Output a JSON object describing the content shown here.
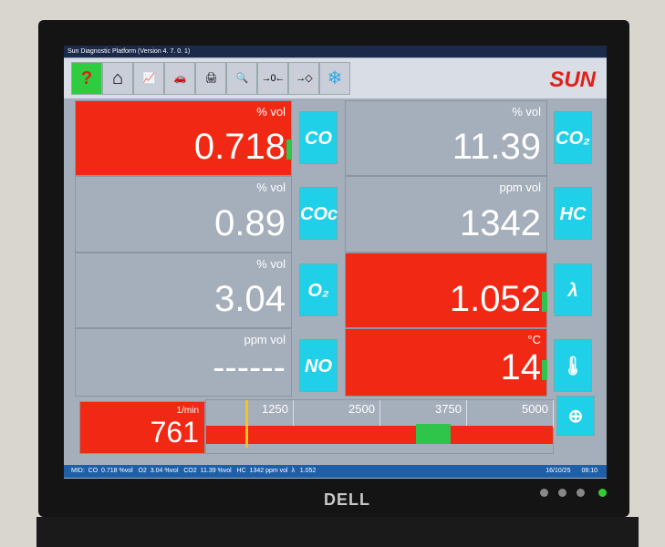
{
  "window": {
    "title": "Sun Diagnostic Platform (Version 4. 7. 0. 1)",
    "logo": "SUN"
  },
  "toolbar": [
    {
      "icon": "help-icon",
      "glyph": "?"
    },
    {
      "icon": "home-icon",
      "glyph": "⌂"
    },
    {
      "icon": "graph-icon",
      "glyph": "📈"
    },
    {
      "icon": "car-icon",
      "glyph": "🚗"
    },
    {
      "icon": "printer-icon",
      "glyph": "🖨"
    },
    {
      "icon": "magnifier-icon",
      "glyph": "🔍"
    },
    {
      "icon": "zero-calibrate-icon",
      "glyph": "→0←"
    },
    {
      "icon": "input-icon",
      "glyph": "→◇"
    },
    {
      "icon": "snowflake-icon",
      "glyph": "❄"
    }
  ],
  "readings": [
    {
      "id": "co",
      "unit": "% vol",
      "value": "0.718",
      "tag": "CO",
      "alarm": true
    },
    {
      "id": "co2",
      "unit": "% vol",
      "value": "11.39",
      "tag": "CO₂",
      "alarm": false
    },
    {
      "id": "coc",
      "unit": "% vol",
      "value": "0.89",
      "tag": "COc",
      "alarm": false
    },
    {
      "id": "hc",
      "unit": "ppm vol",
      "value": "1342",
      "tag": "HC",
      "alarm": false
    },
    {
      "id": "o2",
      "unit": "% vol",
      "value": "3.04",
      "tag": "O₂",
      "alarm": false
    },
    {
      "id": "lambda",
      "unit": "",
      "value": "1.052",
      "tag": "λ",
      "alarm": true
    },
    {
      "id": "no",
      "unit": "ppm vol",
      "value": "------",
      "tag": "NO",
      "alarm": false
    },
    {
      "id": "temp",
      "unit": "°C",
      "value": "14",
      "tag": "thermometer",
      "alarm": true
    }
  ],
  "rpm": {
    "unit": "1/min",
    "value": "761",
    "ticks": [
      "1250",
      "2500",
      "3750",
      "5000"
    ],
    "max": 5000,
    "green_range": [
      2500,
      3000
    ],
    "current": 761
  },
  "status": {
    "text": "MID:  CO  0.718 %vol   O2  3.04 %vol   CO2  11.39 %vol   HC  1342 ppm vol  λ   1.052",
    "date": "16/10/25",
    "time": "08:10"
  },
  "monitor": {
    "brand": "DELL"
  },
  "colors": {
    "alarm": "#f02814",
    "tag": "#1fd0e8",
    "ok": "#2fc44a",
    "panel": "#a5aebb"
  }
}
